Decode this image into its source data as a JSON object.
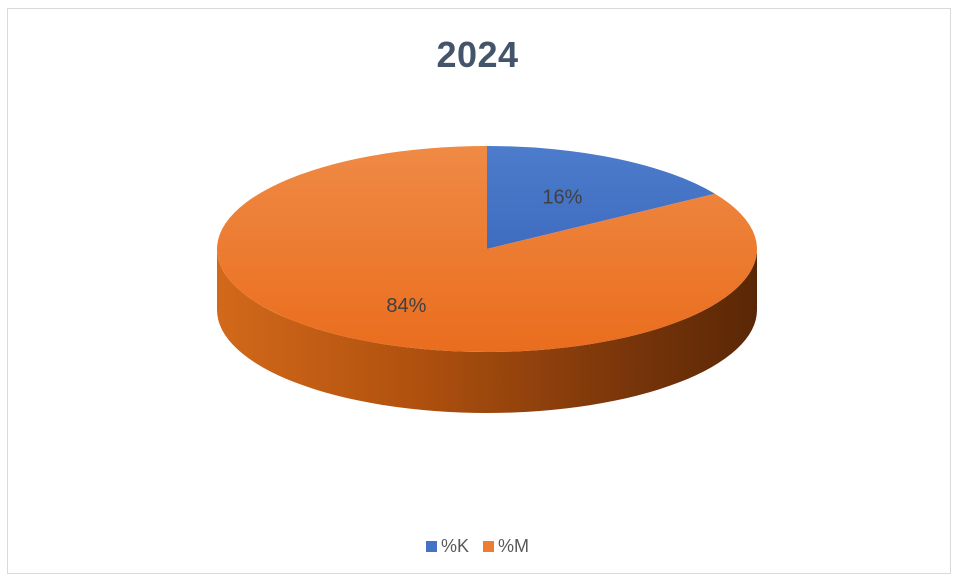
{
  "chart_data": {
    "type": "pie",
    "title": "2024",
    "categories": [
      "%K",
      "%M"
    ],
    "values": [
      16,
      84
    ],
    "data_labels": [
      "16%",
      "84%"
    ],
    "colors": [
      "#4472c4",
      "#ed7d31"
    ],
    "style": "3d",
    "legend_position": "bottom"
  }
}
